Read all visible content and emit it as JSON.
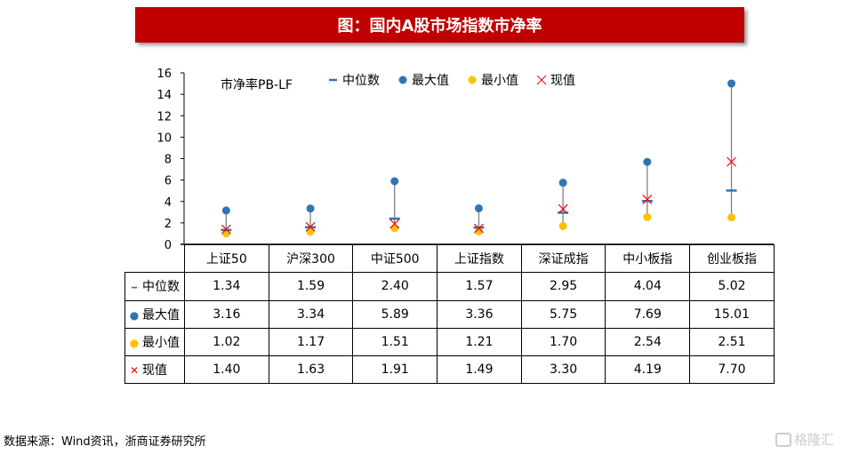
{
  "title": "图：国内A股市场指数市净率",
  "source": "数据来源：Wind资讯，浙商证券研究所",
  "watermark": "格隆汇",
  "chart_data": {
    "type": "scatter",
    "title": "市净率PB-LF",
    "categories": [
      "上证50",
      "沪深300",
      "中证500",
      "上证指数",
      "深证成指",
      "中小板指",
      "创业板指"
    ],
    "ylim": [
      0,
      16
    ],
    "yticks": [
      "0",
      "2",
      "4",
      "6",
      "8",
      "10",
      "12",
      "14",
      "16"
    ],
    "legend_position": "top-right",
    "series": [
      {
        "name": "中位数",
        "marker": "dash",
        "color": "#2e75b6",
        "values": [
          1.34,
          1.59,
          2.4,
          1.57,
          2.95,
          4.04,
          5.02
        ],
        "labels": [
          "1.34",
          "1.59",
          "2.40",
          "1.57",
          "2.95",
          "4.04",
          "5.02"
        ]
      },
      {
        "name": "最大值",
        "marker": "circle",
        "color": "#2e75b6",
        "values": [
          3.16,
          3.34,
          5.89,
          3.36,
          5.75,
          7.69,
          15.01
        ],
        "labels": [
          "3.16",
          "3.34",
          "5.89",
          "3.36",
          "5.75",
          "7.69",
          "15.01"
        ]
      },
      {
        "name": "最小值",
        "marker": "circle",
        "color": "#ffc000",
        "values": [
          1.02,
          1.17,
          1.51,
          1.21,
          1.7,
          2.54,
          2.51
        ],
        "labels": [
          "1.02",
          "1.17",
          "1.51",
          "1.21",
          "1.70",
          "2.54",
          "2.51"
        ]
      },
      {
        "name": "现值",
        "marker": "x",
        "color": "#ff0000",
        "values": [
          1.4,
          1.63,
          1.91,
          1.49,
          3.3,
          4.19,
          7.7
        ],
        "labels": [
          "1.40",
          "1.63",
          "1.91",
          "1.49",
          "3.30",
          "4.19",
          "7.70"
        ]
      }
    ]
  }
}
